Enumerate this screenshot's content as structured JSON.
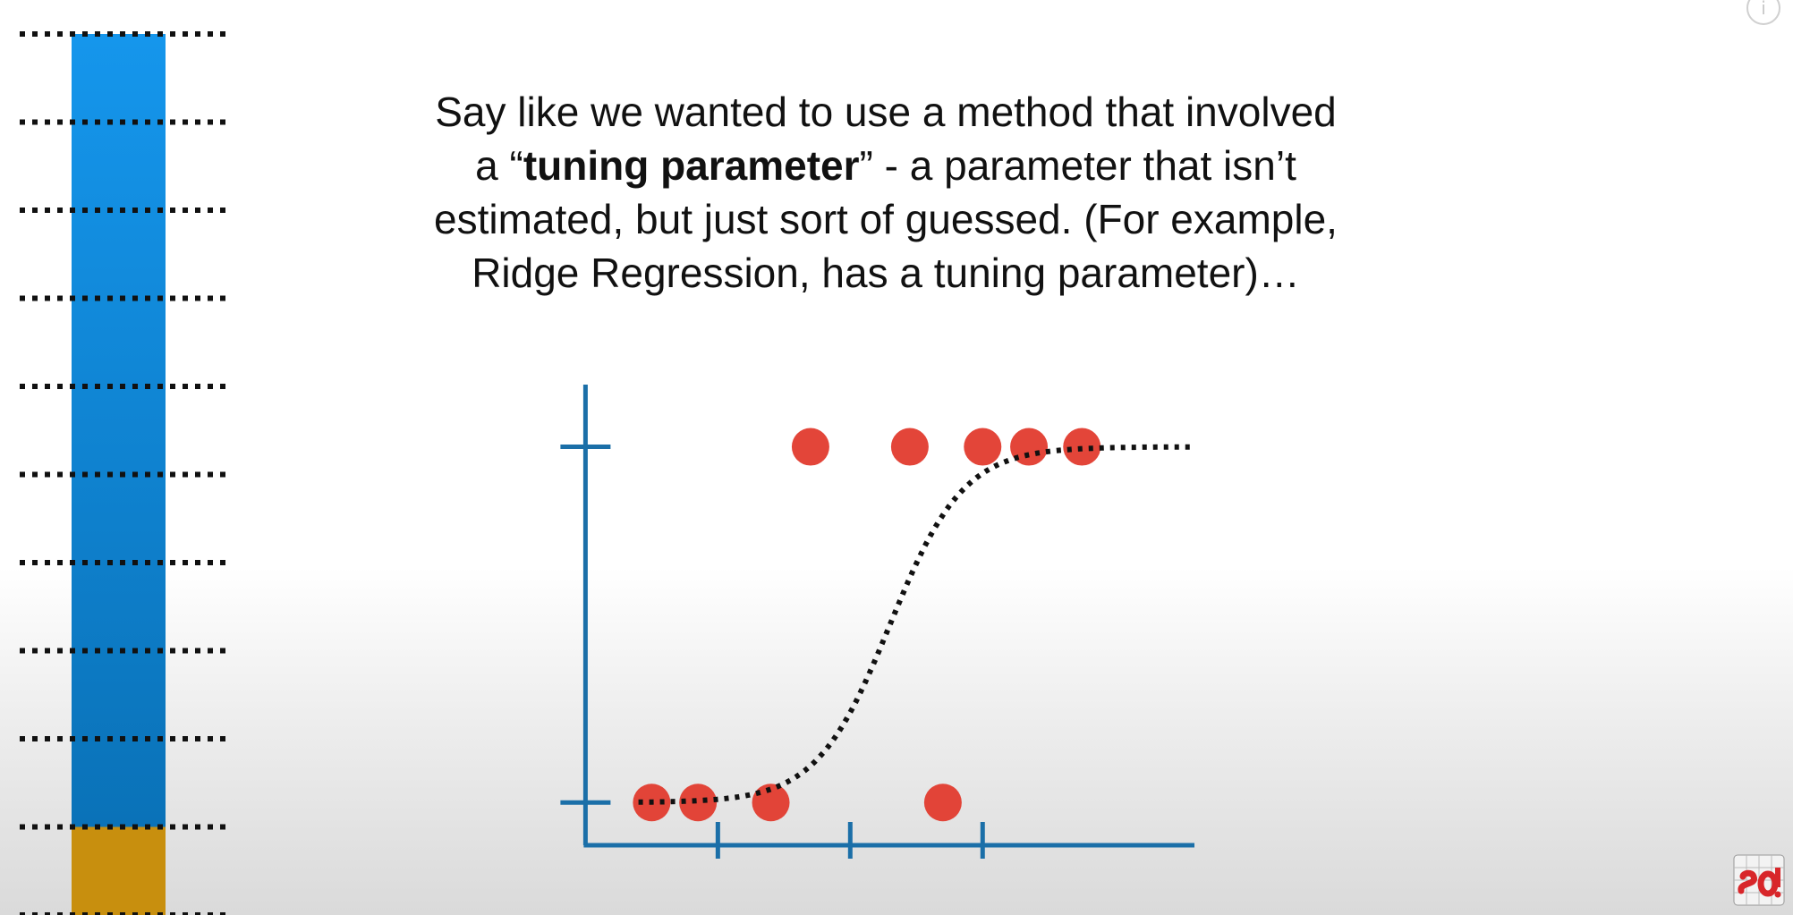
{
  "caption": {
    "line1": "Say like we wanted to use a method that involved",
    "line2_pre": "a “",
    "line2_bold": "tuning parameter",
    "line2_post": "” - a parameter that isn’t",
    "line3": "estimated, but just sort of guessed. (For example,",
    "line4": "Ridge Regression, has a tuning parameter)…"
  },
  "fold_bar": {
    "folds": 10,
    "test_fold_index": 9,
    "training_color": "#1596ec",
    "test_color": "#c88f0e"
  },
  "chart_data": {
    "type": "scatter",
    "points": [
      {
        "x": 0.5,
        "y": 0
      },
      {
        "x": 0.85,
        "y": 0
      },
      {
        "x": 1.4,
        "y": 0
      },
      {
        "x": 2.7,
        "y": 0
      },
      {
        "x": 1.7,
        "y": 1
      },
      {
        "x": 2.45,
        "y": 1
      },
      {
        "x": 3.0,
        "y": 1
      },
      {
        "x": 3.35,
        "y": 1
      },
      {
        "x": 3.75,
        "y": 1
      }
    ],
    "curve": {
      "type": "logistic",
      "midpoint": 2.3,
      "steepness": 3.6,
      "x_start": 0.4,
      "x_end": 4.6
    },
    "x_ticks": [
      1,
      2,
      3
    ],
    "y_ticks": [
      0,
      1
    ],
    "xlim": [
      -0.05,
      4.6
    ],
    "ylim": [
      -0.12,
      1.2
    ],
    "point_color": "#e23b2e",
    "axis_color": "#1b6fa8",
    "grid": false
  },
  "overlay": {
    "info_icon_glyph": "i",
    "logo_icon": "statquest-logo-icon"
  }
}
